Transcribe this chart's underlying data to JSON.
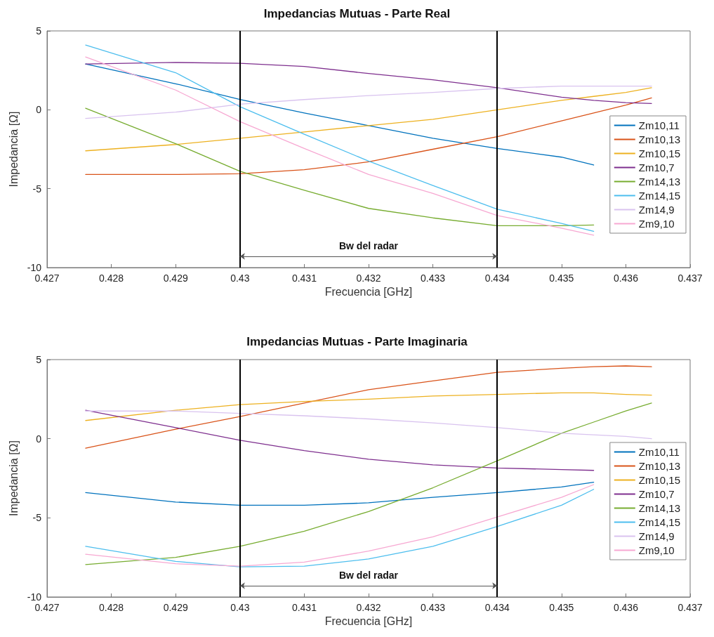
{
  "chart_data": [
    {
      "type": "line",
      "title": "Impedancias Mutuas - Parte Real",
      "xlabel": "Frecuencia [GHz]",
      "ylabel": "Impedancia [Ω]",
      "x": [
        0.4276,
        0.429,
        0.43,
        0.431,
        0.432,
        0.433,
        0.434,
        0.435,
        0.4355,
        0.436,
        0.4364
      ],
      "series": [
        {
          "name": "Zm10,11",
          "color": "#0072bd",
          "values": [
            2.9,
            1.65,
            0.65,
            -0.2,
            -1.0,
            -1.8,
            -2.45,
            -3.0,
            -3.5,
            null,
            null
          ]
        },
        {
          "name": "Zm10,13",
          "color": "#d95319",
          "values": [
            -4.1,
            -4.1,
            -4.05,
            -3.8,
            -3.3,
            -2.5,
            -1.7,
            -0.7,
            -0.2,
            0.3,
            0.75
          ]
        },
        {
          "name": "Zm10,15",
          "color": "#edb120",
          "values": [
            -2.6,
            -2.2,
            -1.8,
            -1.4,
            -1.0,
            -0.6,
            0.0,
            0.6,
            0.85,
            1.1,
            1.4
          ]
        },
        {
          "name": "Zm10,7",
          "color": "#7e2f8e",
          "values": [
            2.9,
            3.0,
            2.95,
            2.75,
            2.3,
            1.9,
            1.4,
            0.8,
            0.6,
            0.45,
            0.4
          ]
        },
        {
          "name": "Zm14,13",
          "color": "#77ac30",
          "values": [
            0.1,
            -2.15,
            -3.9,
            -5.1,
            -6.25,
            -6.85,
            -7.35,
            -7.35,
            -7.3,
            null,
            null
          ]
        },
        {
          "name": "Zm14,15",
          "color": "#4dbeee",
          "values": [
            4.1,
            2.35,
            0.2,
            -1.55,
            -3.25,
            -4.8,
            -6.3,
            -7.2,
            -7.7,
            null,
            null
          ]
        },
        {
          "name": "Zm14,9",
          "color": "#d9c3ef",
          "values": [
            -0.55,
            -0.15,
            0.35,
            0.65,
            0.9,
            1.1,
            1.35,
            1.5,
            1.5,
            1.5,
            1.5
          ]
        },
        {
          "name": "Zm9,10",
          "color": "#f7a8d2",
          "values": [
            3.35,
            1.25,
            -0.75,
            -2.45,
            -4.1,
            -5.3,
            -6.7,
            -7.5,
            -7.95,
            null,
            null
          ]
        }
      ],
      "xlim": [
        0.427,
        0.437
      ],
      "xticks": [
        0.427,
        0.428,
        0.429,
        0.43,
        0.431,
        0.432,
        0.433,
        0.434,
        0.435,
        0.436,
        0.437
      ],
      "ylim": [
        -10,
        5
      ],
      "yticks": [
        -10,
        -5,
        0,
        5
      ],
      "ref_lines": [
        {
          "axis": "x",
          "value": 0.43,
          "color": "#000000"
        },
        {
          "axis": "x",
          "value": 0.434,
          "color": "#000000"
        }
      ],
      "annotations": [
        "Bw del radar"
      ],
      "legend": "right",
      "grid": false,
      "marker": "none",
      "line_style": "solid"
    },
    {
      "type": "line",
      "title": "Impedancias Mutuas - Parte Imaginaria",
      "xlabel": "Frecuencia [GHz]",
      "ylabel": "Impedancia [Ω]",
      "x": [
        0.4276,
        0.429,
        0.43,
        0.431,
        0.432,
        0.433,
        0.434,
        0.435,
        0.4355,
        0.436,
        0.4364
      ],
      "series": [
        {
          "name": "Zm10,11",
          "color": "#0072bd",
          "values": [
            -3.4,
            -4.0,
            -4.2,
            -4.2,
            -4.05,
            -3.7,
            -3.4,
            -3.05,
            -2.75,
            null,
            null
          ]
        },
        {
          "name": "Zm10,13",
          "color": "#d95319",
          "values": [
            -0.6,
            0.6,
            1.4,
            2.25,
            3.1,
            3.65,
            4.2,
            4.45,
            4.55,
            4.6,
            4.55
          ]
        },
        {
          "name": "Zm10,15",
          "color": "#edb120",
          "values": [
            1.15,
            1.8,
            2.15,
            2.35,
            2.5,
            2.7,
            2.8,
            2.9,
            2.9,
            2.8,
            2.75
          ]
        },
        {
          "name": "Zm10,7",
          "color": "#7e2f8e",
          "values": [
            1.8,
            0.7,
            -0.1,
            -0.75,
            -1.3,
            -1.65,
            -1.85,
            -1.95,
            -2.0,
            null,
            null
          ]
        },
        {
          "name": "Zm14,13",
          "color": "#77ac30",
          "values": [
            -7.95,
            -7.5,
            -6.8,
            -5.85,
            -4.6,
            -3.1,
            -1.4,
            0.35,
            1.05,
            1.75,
            2.25
          ]
        },
        {
          "name": "Zm14,15",
          "color": "#4dbeee",
          "values": [
            -6.8,
            -7.75,
            -8.1,
            -8.05,
            -7.6,
            -6.8,
            -5.55,
            -4.2,
            -3.2,
            null,
            null
          ]
        },
        {
          "name": "Zm14,9",
          "color": "#d9c3ef",
          "values": [
            1.75,
            1.75,
            1.6,
            1.45,
            1.25,
            1.0,
            0.7,
            0.35,
            0.25,
            0.15,
            0.0
          ]
        },
        {
          "name": "Zm9,10",
          "color": "#f7a8d2",
          "values": [
            -7.3,
            -7.9,
            -8.05,
            -7.8,
            -7.1,
            -6.2,
            -4.95,
            -3.7,
            -2.9,
            null,
            null
          ]
        }
      ],
      "xlim": [
        0.427,
        0.437
      ],
      "xticks": [
        0.427,
        0.428,
        0.429,
        0.43,
        0.431,
        0.432,
        0.433,
        0.434,
        0.435,
        0.436,
        0.437
      ],
      "ylim": [
        -10,
        5
      ],
      "yticks": [
        -10,
        -5,
        0,
        5
      ],
      "ref_lines": [
        {
          "axis": "x",
          "value": 0.43,
          "color": "#000000"
        },
        {
          "axis": "x",
          "value": 0.434,
          "color": "#000000"
        }
      ],
      "annotations": [
        "Bw del radar"
      ],
      "legend": "right",
      "grid": false,
      "marker": "none",
      "line_style": "solid"
    }
  ]
}
